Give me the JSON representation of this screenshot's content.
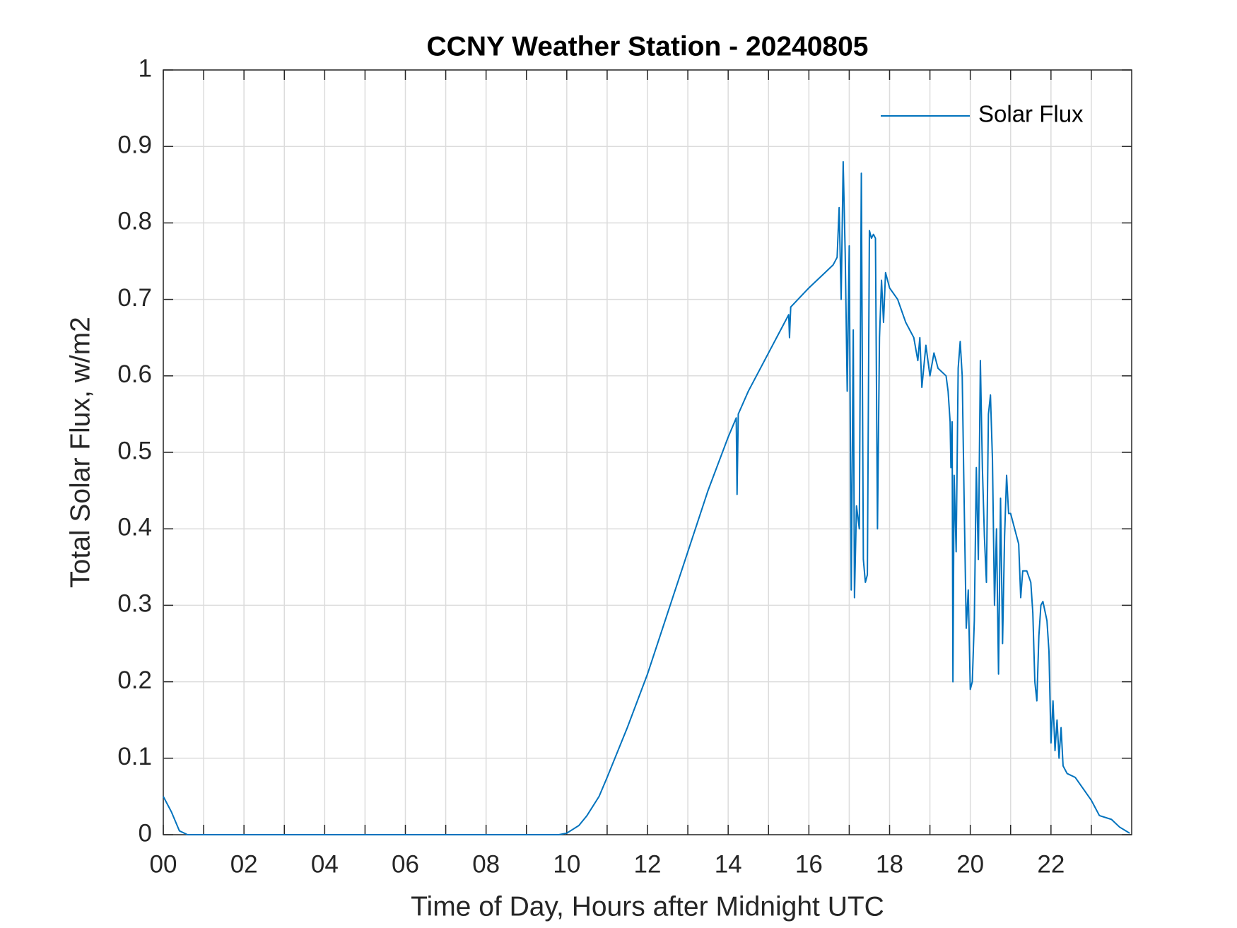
{
  "chart_data": {
    "type": "line",
    "title": "CCNY Weather Station - 20240805",
    "xlabel": "Time of Day, Hours after Midnight UTC",
    "ylabel": "Total Solar Flux, w/m2",
    "xlim": [
      0,
      24
    ],
    "ylim": [
      0,
      1
    ],
    "xticks": [
      {
        "value": 0,
        "label": "00"
      },
      {
        "value": 2,
        "label": "02"
      },
      {
        "value": 4,
        "label": "04"
      },
      {
        "value": 6,
        "label": "06"
      },
      {
        "value": 8,
        "label": "08"
      },
      10,
      12,
      14,
      16,
      18,
      20,
      22
    ],
    "xminorticks": [
      1,
      3,
      5,
      7,
      9,
      11,
      13,
      15,
      17,
      19,
      21,
      23
    ],
    "yticks": [
      0,
      0.1,
      0.2,
      0.3,
      0.4,
      0.5,
      0.6,
      0.7,
      0.8,
      0.9,
      1
    ],
    "grid": true,
    "legend": "top-right",
    "series": [
      {
        "name": "Solar Flux",
        "color": "#0072bd",
        "x": [
          0,
          0.2,
          0.4,
          0.6,
          1,
          2,
          3,
          4,
          5,
          6,
          7,
          8,
          9,
          9.8,
          10,
          10.3,
          10.5,
          10.8,
          11,
          11.5,
          12,
          12.5,
          13,
          13.5,
          14,
          14.2,
          14.22,
          14.25,
          14.5,
          15,
          15.3,
          15.5,
          15.52,
          15.55,
          16,
          16.4,
          16.6,
          16.7,
          16.75,
          16.8,
          16.85,
          16.9,
          16.95,
          17,
          17.05,
          17.1,
          17.13,
          17.18,
          17.25,
          17.3,
          17.35,
          17.4,
          17.45,
          17.5,
          17.55,
          17.6,
          17.65,
          17.7,
          17.75,
          17.8,
          17.85,
          17.9,
          18,
          18.2,
          18.4,
          18.5,
          18.6,
          18.7,
          18.75,
          18.8,
          18.9,
          19,
          19.1,
          19.2,
          19.4,
          19.45,
          19.5,
          19.52,
          19.55,
          19.57,
          19.6,
          19.65,
          19.7,
          19.75,
          19.8,
          19.85,
          19.9,
          19.95,
          20,
          20.05,
          20.1,
          20.15,
          20.2,
          20.25,
          20.3,
          20.35,
          20.4,
          20.45,
          20.5,
          20.55,
          20.6,
          20.65,
          20.7,
          20.75,
          20.8,
          20.85,
          20.9,
          20.95,
          21,
          21.1,
          21.2,
          21.25,
          21.3,
          21.4,
          21.5,
          21.55,
          21.6,
          21.65,
          21.7,
          21.75,
          21.8,
          21.9,
          21.95,
          22,
          22.05,
          22.1,
          22.15,
          22.2,
          22.25,
          22.3,
          22.4,
          22.6,
          22.8,
          23,
          23.2,
          23.5,
          23.7,
          23.95
        ],
        "values": [
          0.05,
          0.03,
          0.005,
          0,
          0,
          0,
          0,
          0,
          0,
          0,
          0,
          0,
          0,
          0,
          0.002,
          0.012,
          0.025,
          0.05,
          0.075,
          0.14,
          0.21,
          0.29,
          0.37,
          0.45,
          0.52,
          0.545,
          0.445,
          0.55,
          0.58,
          0.63,
          0.66,
          0.68,
          0.65,
          0.69,
          0.715,
          0.735,
          0.745,
          0.755,
          0.82,
          0.7,
          0.88,
          0.76,
          0.58,
          0.77,
          0.32,
          0.66,
          0.31,
          0.43,
          0.4,
          0.865,
          0.36,
          0.33,
          0.34,
          0.79,
          0.78,
          0.785,
          0.78,
          0.4,
          0.65,
          0.725,
          0.67,
          0.735,
          0.715,
          0.7,
          0.67,
          0.66,
          0.65,
          0.62,
          0.65,
          0.585,
          0.64,
          0.6,
          0.63,
          0.61,
          0.6,
          0.58,
          0.54,
          0.48,
          0.54,
          0.2,
          0.47,
          0.37,
          0.61,
          0.645,
          0.6,
          0.43,
          0.27,
          0.32,
          0.19,
          0.2,
          0.28,
          0.48,
          0.36,
          0.62,
          0.48,
          0.39,
          0.33,
          0.55,
          0.575,
          0.49,
          0.3,
          0.4,
          0.21,
          0.44,
          0.25,
          0.39,
          0.47,
          0.42,
          0.42,
          0.4,
          0.38,
          0.31,
          0.345,
          0.345,
          0.33,
          0.29,
          0.2,
          0.175,
          0.26,
          0.3,
          0.305,
          0.28,
          0.24,
          0.12,
          0.175,
          0.11,
          0.15,
          0.1,
          0.14,
          0.09,
          0.08,
          0.075,
          0.06,
          0.045,
          0.025,
          0.02,
          0.01,
          0.002
        ]
      }
    ]
  }
}
